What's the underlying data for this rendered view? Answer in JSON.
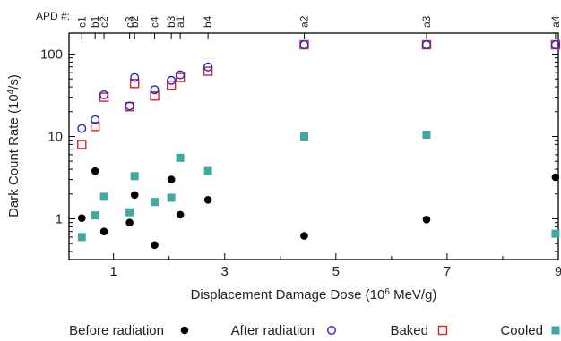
{
  "chart_data": {
    "type": "scatter",
    "xlabel": "Displacement Damage Dose (10",
    "xlabel_sup": "6",
    "xlabel_tail": " MeV/g)",
    "ylabel": "Dark Count Rate (10",
    "ylabel_sup": "4",
    "ylabel_tail": "/s)",
    "xlim": [
      0.2,
      9.0
    ],
    "ylim": [
      0.32,
      180
    ],
    "y_scale": "log",
    "x_ticks": [
      1,
      3,
      5,
      7,
      9
    ],
    "y_ticks": [
      {
        "value": 1,
        "label": "1"
      },
      {
        "value": 10,
        "label": "10"
      },
      {
        "value": 100,
        "label": "100"
      }
    ],
    "top_axis": {
      "title": "APD #:",
      "ticks": [
        {
          "x": 0.43,
          "label": "c1"
        },
        {
          "x": 0.67,
          "label": "b1"
        },
        {
          "x": 0.83,
          "label": "c2"
        },
        {
          "x": 1.29,
          "label": "c3"
        },
        {
          "x": 1.38,
          "label": "b2"
        },
        {
          "x": 1.74,
          "label": "c4"
        },
        {
          "x": 2.04,
          "label": "b3"
        },
        {
          "x": 2.2,
          "label": "a1"
        },
        {
          "x": 2.7,
          "label": "b4"
        },
        {
          "x": 4.43,
          "label": "a2"
        },
        {
          "x": 6.63,
          "label": "a3"
        },
        {
          "x": 8.95,
          "label": "a4"
        }
      ]
    },
    "legend_position": "bottom",
    "series": [
      {
        "name": "Before radiation",
        "marker": "filled-circle",
        "color": "#000000",
        "points": [
          [
            0.43,
            1.02
          ],
          [
            0.67,
            3.8
          ],
          [
            0.83,
            0.7
          ],
          [
            1.29,
            0.9
          ],
          [
            1.38,
            1.95
          ],
          [
            1.74,
            0.48
          ],
          [
            2.04,
            3.0
          ],
          [
            2.2,
            1.12
          ],
          [
            2.7,
            1.7
          ],
          [
            4.43,
            0.62
          ],
          [
            6.63,
            0.98
          ],
          [
            8.95,
            3.2
          ]
        ]
      },
      {
        "name": "After radiation",
        "marker": "open-circle",
        "color": "#2222dd",
        "points": [
          [
            0.43,
            12.5
          ],
          [
            0.67,
            16
          ],
          [
            0.83,
            32
          ],
          [
            1.29,
            23.5
          ],
          [
            1.38,
            52
          ],
          [
            1.74,
            37
          ],
          [
            2.04,
            48
          ],
          [
            2.2,
            56
          ],
          [
            2.7,
            70
          ],
          [
            4.43,
            130
          ],
          [
            6.63,
            130
          ],
          [
            8.95,
            130
          ]
        ]
      },
      {
        "name": "Baked",
        "marker": "open-square",
        "color": "#dd2222",
        "points": [
          [
            0.43,
            8.0
          ],
          [
            0.67,
            13.2
          ],
          [
            0.83,
            30
          ],
          [
            1.29,
            23
          ],
          [
            1.38,
            44
          ],
          [
            1.74,
            31
          ],
          [
            2.04,
            42
          ],
          [
            2.2,
            52
          ],
          [
            2.7,
            62
          ],
          [
            4.43,
            130
          ],
          [
            6.63,
            130
          ],
          [
            8.95,
            130
          ]
        ]
      },
      {
        "name": "Cooled",
        "marker": "filled-square",
        "color": "#3fa9a0",
        "points": [
          [
            0.43,
            0.6
          ],
          [
            0.67,
            1.1
          ],
          [
            0.83,
            1.85
          ],
          [
            1.29,
            1.2
          ],
          [
            1.38,
            3.3
          ],
          [
            1.74,
            1.6
          ],
          [
            2.04,
            1.8
          ],
          [
            2.2,
            5.5
          ],
          [
            2.7,
            3.8
          ],
          [
            4.43,
            10
          ],
          [
            6.63,
            10.5
          ],
          [
            8.95,
            0.66
          ]
        ]
      }
    ]
  }
}
